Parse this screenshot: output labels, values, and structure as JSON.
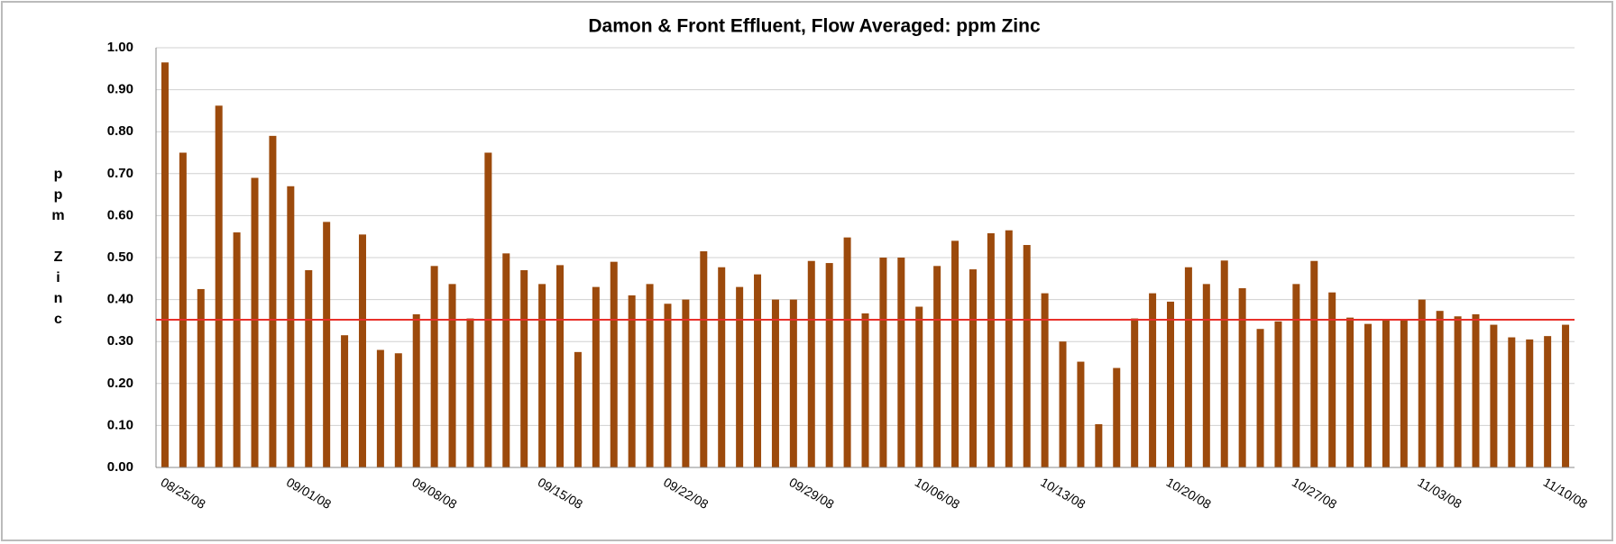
{
  "chart_data": {
    "type": "bar",
    "title": "Damon & Front Effluent, Flow Averaged:  ppm Zinc",
    "y_label": "ppm Zinc",
    "color": "#9c4a0c",
    "categories": [
      "08/25/08",
      null,
      null,
      null,
      null,
      null,
      null,
      "09/01/08",
      null,
      null,
      null,
      null,
      null,
      null,
      "09/08/08",
      null,
      null,
      null,
      null,
      null,
      null,
      "09/15/08",
      null,
      null,
      null,
      null,
      null,
      null,
      "09/22/08",
      null,
      null,
      null,
      null,
      null,
      null,
      "09/29/08",
      null,
      null,
      null,
      null,
      null,
      null,
      "10/06/08",
      null,
      null,
      null,
      null,
      null,
      null,
      "10/13/08",
      null,
      null,
      null,
      null,
      null,
      null,
      "10/20/08",
      null,
      null,
      null,
      null,
      null,
      null,
      "10/27/08",
      null,
      null,
      null,
      null,
      null,
      null,
      "11/03/08",
      null,
      null,
      null,
      null,
      null,
      null,
      "11/10/08",
      null
    ],
    "values": [
      0.965,
      0.75,
      0.425,
      0.862,
      0.56,
      0.69,
      0.79,
      0.67,
      0.47,
      0.585,
      0.315,
      0.555,
      0.28,
      0.272,
      0.365,
      0.48,
      0.437,
      0.355,
      0.75,
      0.51,
      0.47,
      0.437,
      0.482,
      0.275,
      0.43,
      0.49,
      0.41,
      0.437,
      0.39,
      0.4,
      0.515,
      0.477,
      0.43,
      0.46,
      0.4,
      0.4,
      0.492,
      0.487,
      0.548,
      0.367,
      0.5,
      0.5,
      0.383,
      0.48,
      0.54,
      0.472,
      0.558,
      0.565,
      0.53,
      0.415,
      0.3,
      0.252,
      0.103,
      0.237,
      0.355,
      0.415,
      0.395,
      0.477,
      0.437,
      0.493,
      0.427,
      0.33,
      0.348,
      0.437,
      0.492,
      0.417,
      0.357,
      0.342,
      0.35,
      0.352,
      0.4,
      0.373,
      0.36,
      0.365,
      0.34,
      0.31,
      0.305,
      0.313,
      0.34
    ],
    "reference_line": {
      "value": 0.352,
      "color": "#e8302a"
    },
    "ylim": [
      0,
      1
    ],
    "yticks": [
      {
        "value": 0,
        "label": "0.00"
      },
      {
        "value": 0.1,
        "label": "0.10"
      },
      {
        "value": 0.2,
        "label": "0.20"
      },
      {
        "value": 0.3,
        "label": "0.30"
      },
      {
        "value": 0.4,
        "label": "0.40"
      },
      {
        "value": 0.5,
        "label": "0.50"
      },
      {
        "value": 0.6,
        "label": "0.60"
      },
      {
        "value": 0.7,
        "label": "0.70"
      },
      {
        "value": 0.8,
        "label": "0.80"
      },
      {
        "value": 0.9,
        "label": "0.90"
      },
      {
        "value": 1,
        "label": "1.00"
      }
    ],
    "grid": true
  }
}
